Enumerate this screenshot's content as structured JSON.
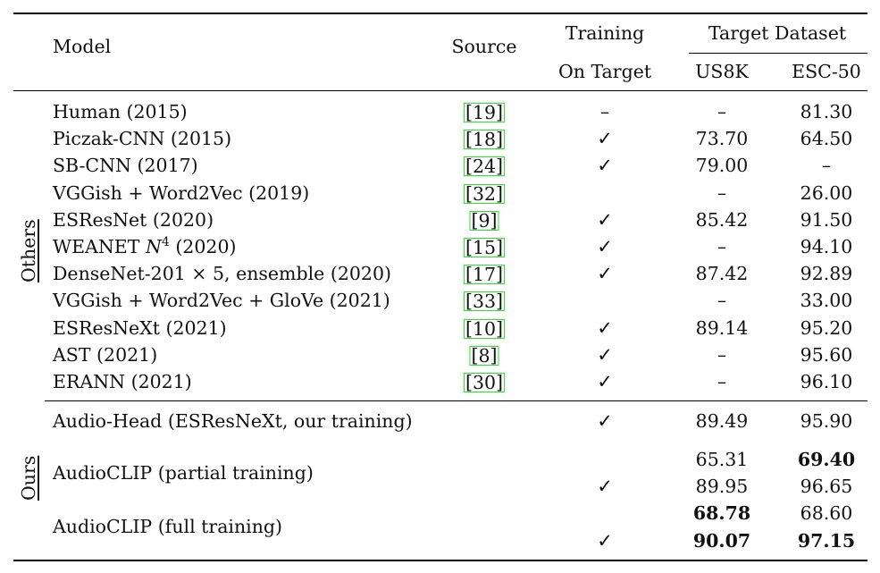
{
  "header": {
    "model": "Model",
    "source": "Source",
    "training_line1": "Training",
    "training_line2": "On Target",
    "target_dataset": "Target Dataset",
    "col_us8k": "US8K",
    "col_esc50": "ESC-50"
  },
  "groups": {
    "others": "Others",
    "ours": "Ours"
  },
  "dash": "–",
  "checkmark": "✓",
  "others_rows": [
    {
      "model": "Human (2015)",
      "source": "[19]",
      "training": false,
      "us8k": "–",
      "esc50": "81.30"
    },
    {
      "model": "Piczak-CNN (2015)",
      "source": "[18]",
      "training": true,
      "us8k": "73.70",
      "esc50": "64.50"
    },
    {
      "model": "SB-CNN (2017)",
      "source": "[24]",
      "training": true,
      "us8k": "79.00",
      "esc50": "–"
    },
    {
      "model": "VGGish + Word2Vec (2019)",
      "source": "[32]",
      "training": null,
      "us8k": "–",
      "esc50": "26.00"
    },
    {
      "model": "ESResNet (2020)",
      "source": "[9]",
      "training": true,
      "us8k": "85.42",
      "esc50": "91.50"
    },
    {
      "model": "WEANET N",
      "model_sup": "4",
      "model_suffix": " (2020)",
      "source": "[15]",
      "training": true,
      "us8k": "–",
      "esc50": "94.10"
    },
    {
      "model": "DenseNet-201 × 5, ensemble (2020)",
      "source": "[17]",
      "training": true,
      "us8k": "87.42",
      "esc50": "92.89"
    },
    {
      "model": "VGGish + Word2Vec + GloVe (2021)",
      "source": "[33]",
      "training": null,
      "us8k": "–",
      "esc50": "33.00"
    },
    {
      "model": "ESResNeXt (2021)",
      "source": "[10]",
      "training": true,
      "us8k": "89.14",
      "esc50": "95.20"
    },
    {
      "model": "AST (2021)",
      "source": "[8]",
      "training": true,
      "us8k": "–",
      "esc50": "95.60"
    },
    {
      "model": "ERANN (2021)",
      "source": "[30]",
      "training": true,
      "us8k": "–",
      "esc50": "96.10"
    }
  ],
  "ours_rows": {
    "audio_head": {
      "model": "Audio-Head (ESResNeXt, our training)",
      "us8k": "89.49",
      "esc50": "95.90"
    },
    "partial": {
      "model": "AudioCLIP (partial training)",
      "us8k_a": "65.31",
      "esc50_a": "69.40",
      "us8k_b": "89.95",
      "esc50_b": "96.65"
    },
    "full": {
      "model": "AudioCLIP (full training)",
      "us8k_a": "68.78",
      "esc50_a": "68.60",
      "us8k_b": "90.07",
      "esc50_b": "97.15"
    }
  }
}
